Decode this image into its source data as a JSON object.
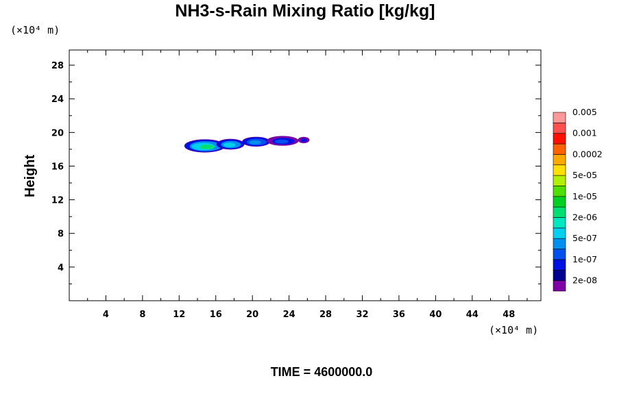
{
  "chart_data": {
    "type": "heatmap",
    "title": "NH3-s-Rain Mixing Ratio [kg/kg]",
    "ylabel": "Height",
    "x_unit": "(×10⁴ m)",
    "y_unit": "(×10⁴ m)",
    "xlim": [
      0,
      51.5
    ],
    "ylim": [
      0,
      29.8
    ],
    "x_ticks": [
      4,
      8,
      12,
      16,
      20,
      24,
      28,
      32,
      36,
      40,
      44,
      48
    ],
    "y_ticks": [
      4,
      8,
      12,
      16,
      20,
      24,
      28
    ],
    "time_label": "TIME = 4600000.0",
    "colorbar": {
      "colors": [
        "#8000a8",
        "#000090",
        "#0010e0",
        "#0050f0",
        "#0090f0",
        "#00d0f0",
        "#00e8c0",
        "#00e070",
        "#00d020",
        "#50e000",
        "#b0f000",
        "#ffe000",
        "#ffa800",
        "#ff6000",
        "#ff1000",
        "#ff5050",
        "#ff9898"
      ],
      "labels": [
        "2e-08",
        "1e-07",
        "5e-07",
        "2e-06",
        "1e-05",
        "5e-05",
        "0.0002",
        "0.001",
        "0.005"
      ]
    },
    "regions": [
      {
        "x": 14.8,
        "y": 18.4,
        "rx": 2.2,
        "ry": 0.75,
        "levels": [
          "#0010e0",
          "#0090f0",
          "#00d0f0",
          "#00e070"
        ]
      },
      {
        "x": 17.6,
        "y": 18.6,
        "rx": 1.5,
        "ry": 0.6,
        "levels": [
          "#0010e0",
          "#0090f0",
          "#00d0f0"
        ]
      },
      {
        "x": 20.4,
        "y": 18.9,
        "rx": 1.5,
        "ry": 0.55,
        "levels": [
          "#0010e0",
          "#0050f0",
          "#0090f0"
        ]
      },
      {
        "x": 23.3,
        "y": 19.0,
        "rx": 1.7,
        "ry": 0.55,
        "levels": [
          "#8000a8",
          "#0010e0",
          "#0050f0"
        ]
      },
      {
        "x": 25.6,
        "y": 19.1,
        "rx": 0.6,
        "ry": 0.35,
        "levels": [
          "#8000a8",
          "#0010e0"
        ]
      }
    ]
  }
}
